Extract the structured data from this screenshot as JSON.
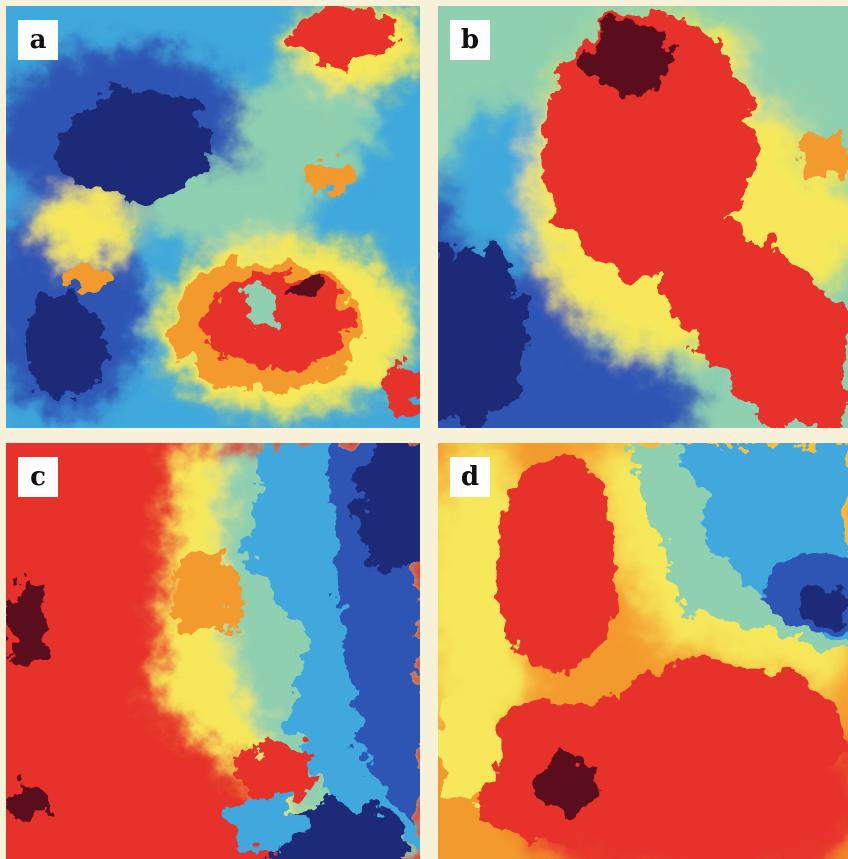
{
  "panels": [
    {
      "id": "a",
      "label": "a"
    },
    {
      "id": "b",
      "label": "b"
    },
    {
      "id": "c",
      "label": "c"
    },
    {
      "id": "d",
      "label": "d"
    }
  ],
  "palette": {
    "background": "#f7f1da",
    "dark_blue": "#1e2a78",
    "blue": "#2e55b4",
    "light_blue": "#3fa8dc",
    "cyan_green": "#8fd0b0",
    "yellow": "#f6e85a",
    "orange": "#f39a2e",
    "red": "#e6322a",
    "dark_red": "#5a0f1a"
  }
}
